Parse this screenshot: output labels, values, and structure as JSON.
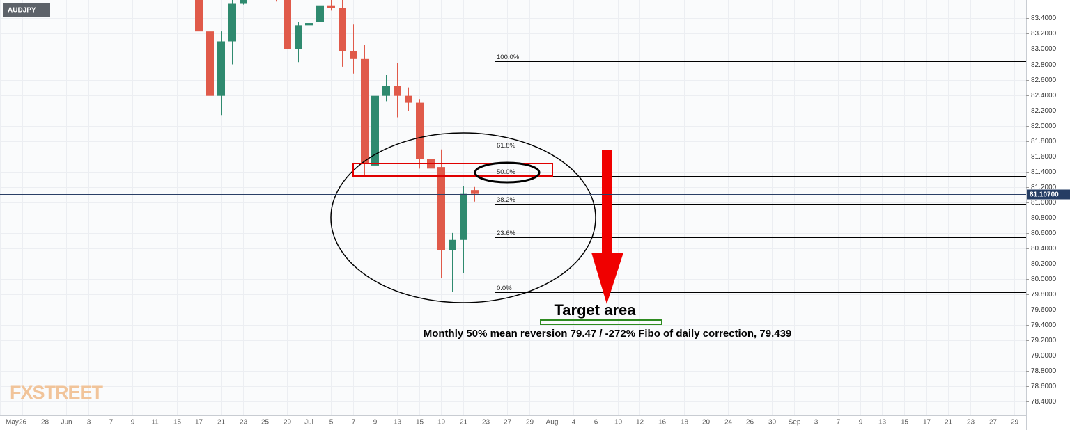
{
  "chart_data": {
    "type": "candlestick",
    "symbol": "AUDJPY",
    "watermark": "FXSTREET",
    "up_color": "#2f8a6f",
    "down_color": "#e05a4a",
    "grid": true,
    "categories": [
      "May",
      null,
      "26",
      null,
      "28",
      null,
      "Jun",
      null,
      "3",
      null,
      "7",
      null,
      "9",
      null,
      "11",
      null,
      "15",
      null,
      "17",
      null,
      "21",
      null,
      "23",
      null,
      "25",
      null,
      "29",
      null,
      "Jul",
      null,
      "5",
      null,
      "7",
      null,
      "9",
      null,
      "13",
      null,
      "15",
      null,
      "19",
      null,
      "21",
      null,
      "23",
      null,
      "27",
      null,
      "29",
      null,
      "Aug",
      null,
      "4",
      null,
      "6",
      null,
      "10",
      null,
      "12",
      null,
      "16",
      null,
      "18",
      null,
      "20",
      null,
      "24",
      null,
      "26",
      null,
      "30",
      null,
      "Sep",
      null,
      "3",
      null,
      "7",
      null,
      "9",
      null,
      "13",
      null,
      "15",
      null,
      "17",
      null,
      "21",
      null,
      "23",
      null,
      "27",
      null,
      "29"
    ],
    "open": [
      null,
      null,
      null,
      null,
      null,
      null,
      null,
      null,
      null,
      null,
      null,
      null,
      null,
      null,
      null,
      null,
      null,
      null,
      83.7,
      83.23,
      82.39,
      83.1,
      83.59,
      null,
      null,
      83.8,
      83.7,
      83.0,
      83.31,
      83.35,
      83.57,
      83.54,
      82.97,
      82.87,
      81.48,
      82.39,
      82.52,
      82.39,
      82.3,
      81.57,
      81.46,
      80.38,
      80.51,
      81.16,
      null,
      null,
      null,
      null,
      null,
      null,
      null,
      null,
      null,
      null,
      null,
      null,
      null,
      null,
      null,
      null,
      null,
      null,
      null,
      null,
      null,
      null,
      null,
      null,
      null,
      null,
      null,
      null,
      null,
      null,
      null,
      null,
      null,
      null,
      null,
      null,
      null,
      null,
      null,
      null,
      null,
      null,
      null,
      null,
      null,
      null,
      null,
      null,
      null
    ],
    "high": [
      null,
      null,
      null,
      null,
      null,
      null,
      null,
      null,
      null,
      null,
      null,
      null,
      null,
      null,
      null,
      null,
      null,
      null,
      83.8,
      83.25,
      83.23,
      83.7,
      83.7,
      null,
      null,
      83.9,
      83.8,
      83.35,
      83.64,
      83.64,
      83.64,
      83.64,
      83.32,
      83.05,
      82.55,
      82.66,
      82.82,
      82.5,
      82.34,
      81.94,
      81.69,
      80.6,
      81.21,
      81.2,
      null,
      null,
      null,
      null,
      null,
      null,
      null,
      null,
      null,
      null,
      null,
      null,
      null,
      null,
      null,
      null,
      null,
      null,
      null,
      null,
      null,
      null,
      null,
      null,
      null,
      null,
      null,
      null,
      null,
      null,
      null,
      null,
      null,
      null,
      null,
      null,
      null,
      null,
      null,
      null,
      null,
      null,
      null,
      null,
      null,
      null,
      null,
      null,
      null
    ],
    "low": [
      null,
      null,
      null,
      null,
      null,
      null,
      null,
      null,
      null,
      null,
      null,
      null,
      null,
      null,
      null,
      null,
      null,
      null,
      83.09,
      82.39,
      82.14,
      82.8,
      83.58,
      null,
      null,
      83.62,
      83.0,
      82.83,
      83.18,
      83.06,
      83.5,
      82.77,
      82.68,
      81.33,
      81.37,
      82.32,
      82.11,
      82.19,
      81.44,
      81.42,
      80.01,
      79.83,
      80.08,
      81.01,
      null,
      null,
      null,
      null,
      null,
      null,
      null,
      null,
      null,
      null,
      null,
      null,
      null,
      null,
      null,
      null,
      null,
      null,
      null,
      null,
      null,
      null,
      null,
      null,
      null,
      null,
      null,
      null,
      null,
      null,
      null,
      null,
      null,
      null,
      null,
      null,
      null,
      null,
      null,
      null,
      null,
      null,
      null,
      null,
      null,
      null,
      null,
      null,
      null
    ],
    "close": [
      null,
      null,
      null,
      null,
      null,
      null,
      null,
      null,
      null,
      null,
      null,
      null,
      null,
      null,
      null,
      null,
      null,
      null,
      83.23,
      82.39,
      83.1,
      83.59,
      83.64,
      null,
      null,
      83.66,
      83.0,
      83.31,
      83.34,
      83.57,
      83.54,
      82.97,
      82.87,
      81.5,
      82.39,
      82.52,
      82.39,
      82.3,
      81.57,
      81.44,
      80.38,
      80.51,
      81.11,
      81.11,
      null,
      null,
      null,
      null,
      null,
      null,
      null,
      null,
      null,
      null,
      null,
      null,
      null,
      null,
      null,
      null,
      null,
      null,
      null,
      null,
      null,
      null,
      null,
      null,
      null,
      null,
      null,
      null,
      null,
      null,
      null,
      null,
      null,
      null,
      null,
      null,
      null,
      null,
      null,
      null,
      null,
      null,
      null,
      null,
      null,
      null,
      null,
      null,
      null
    ],
    "ylim": [
      78.22,
      83.64
    ],
    "yticks": [
      {
        "value": 78.4,
        "label": "78.4000"
      },
      {
        "value": 78.6,
        "label": "78.6000"
      },
      {
        "value": 78.8,
        "label": "78.8000"
      },
      {
        "value": 79.0,
        "label": "79.0000"
      },
      {
        "value": 79.2,
        "label": "79.2000"
      },
      {
        "value": 79.4,
        "label": "79.4000"
      },
      {
        "value": 79.6,
        "label": "79.6000"
      },
      {
        "value": 79.8,
        "label": "79.8000"
      },
      {
        "value": 80.0,
        "label": "80.0000"
      },
      {
        "value": 80.2,
        "label": "80.2000"
      },
      {
        "value": 80.4,
        "label": "80.4000"
      },
      {
        "value": 80.6,
        "label": "80.6000"
      },
      {
        "value": 80.8,
        "label": "80.8000"
      },
      {
        "value": 81.0,
        "label": "81.0000"
      },
      {
        "value": 81.2,
        "label": "81.2000"
      },
      {
        "value": 81.4,
        "label": "81.4000"
      },
      {
        "value": 81.6,
        "label": "81.6000"
      },
      {
        "value": 81.8,
        "label": "81.8000"
      },
      {
        "value": 82.0,
        "label": "82.0000"
      },
      {
        "value": 82.2,
        "label": "82.2000"
      },
      {
        "value": 82.4,
        "label": "82.4000"
      },
      {
        "value": 82.6,
        "label": "82.6000"
      },
      {
        "value": 82.8,
        "label": "82.8000"
      },
      {
        "value": 83.0,
        "label": "83.0000"
      },
      {
        "value": 83.2,
        "label": "83.2000"
      },
      {
        "value": 83.4,
        "label": "83.4000"
      }
    ],
    "last_price": {
      "value": 81.107,
      "label": "81.10700"
    },
    "fib_levels": [
      {
        "name": "100.0%",
        "price": 82.84
      },
      {
        "name": "61.8%",
        "price": 81.69
      },
      {
        "name": "50.0%",
        "price": 81.34
      },
      {
        "name": "38.2%",
        "price": 80.98
      },
      {
        "name": "23.6%",
        "price": 80.54
      },
      {
        "name": "0.0%",
        "price": 79.83
      }
    ],
    "annotations": [
      "Target area",
      "Monthly 50% mean reversion 79.47 / -272% Fibo of daily correction, 79.439"
    ]
  }
}
